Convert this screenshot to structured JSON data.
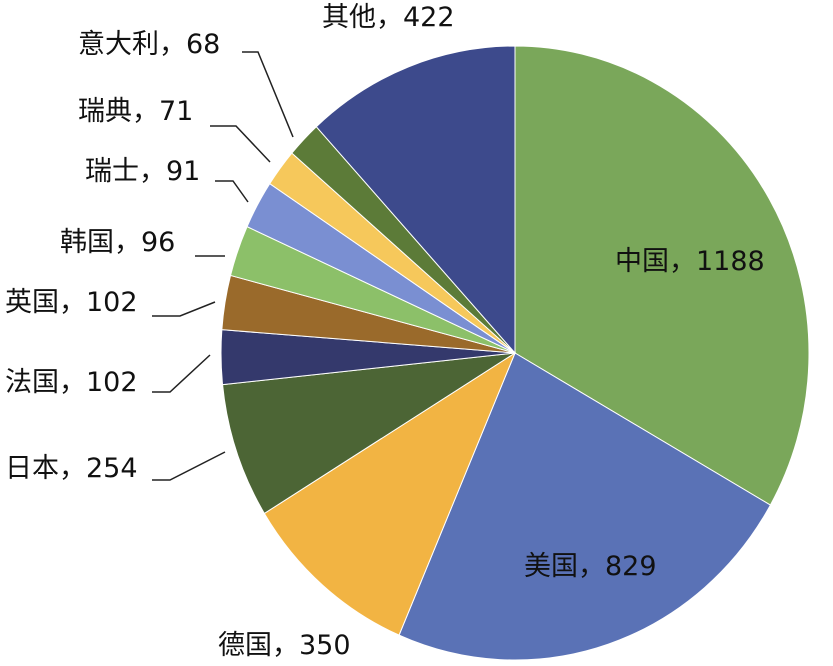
{
  "chart_data": {
    "type": "pie",
    "title": "",
    "start_angle": "top",
    "direction": "clockwise",
    "separator": "，",
    "slices": [
      {
        "name": "中国",
        "value": 1188,
        "color": "#7aa75a"
      },
      {
        "name": "美国",
        "value": 829,
        "color": "#5a72b6"
      },
      {
        "name": "德国",
        "value": 350,
        "color": "#f2b443"
      },
      {
        "name": "日本",
        "value": 254,
        "color": "#4c6535"
      },
      {
        "name": "法国",
        "value": 102,
        "color": "#34396c"
      },
      {
        "name": "英国",
        "value": 102,
        "color": "#9a6a2b"
      },
      {
        "name": "韩国",
        "value": 96,
        "color": "#8cc069"
      },
      {
        "name": "瑞士",
        "value": 91,
        "color": "#7a8fd2"
      },
      {
        "name": "瑞典",
        "value": 71,
        "color": "#f6c85b"
      },
      {
        "name": "意大利",
        "value": 68,
        "color": "#5c7b38"
      },
      {
        "name": "其他",
        "value": 422,
        "color": "#3d4a8c"
      }
    ]
  }
}
